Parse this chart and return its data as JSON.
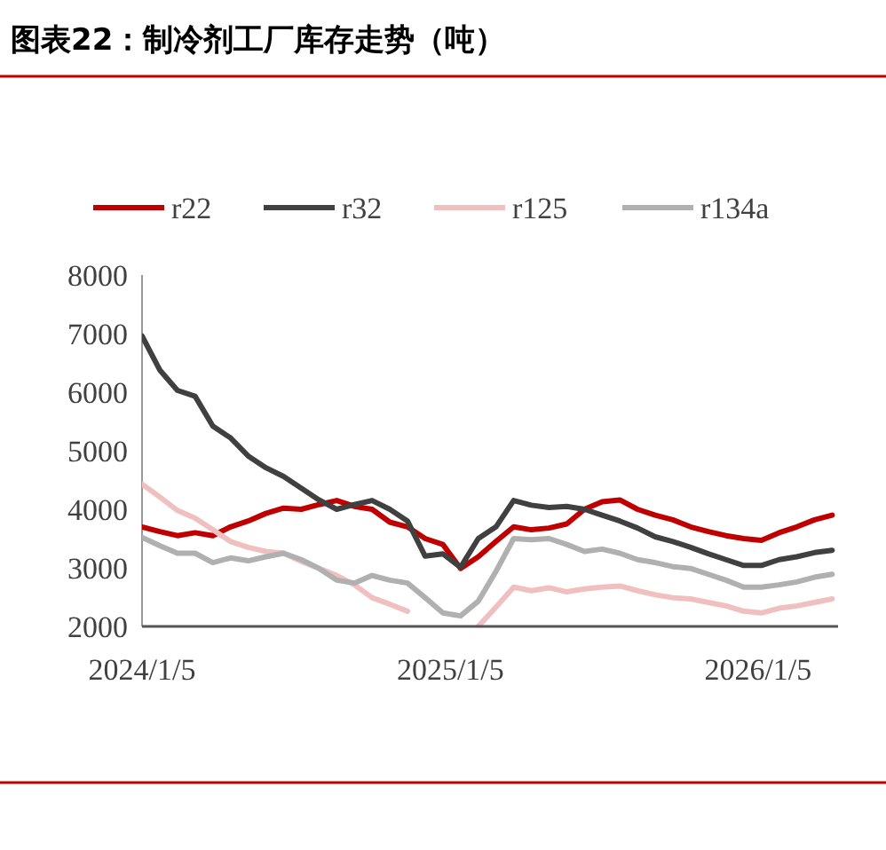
{
  "chart_data": {
    "type": "line",
    "title": "图表22：制冷剂工厂库存走势（吨）",
    "x": [
      "2024-01-05",
      "2024-01-26",
      "2024-02-16",
      "2024-03-08",
      "2024-03-29",
      "2024-04-19",
      "2024-05-10",
      "2024-05-31",
      "2024-06-21",
      "2024-07-12",
      "2024-08-02",
      "2024-08-23",
      "2024-09-13",
      "2024-10-04",
      "2024-10-25",
      "2024-11-15",
      "2024-12-06",
      "2024-12-27",
      "2025-01-17",
      "2025-02-07",
      "2025-02-28",
      "2025-03-21",
      "2025-04-11",
      "2025-05-02",
      "2025-05-23",
      "2025-06-13",
      "2025-07-04",
      "2025-07-25",
      "2025-08-15",
      "2025-09-05",
      "2025-09-26",
      "2025-10-17",
      "2025-11-07",
      "2025-11-28",
      "2025-12-19",
      "2026-01-09",
      "2026-01-30",
      "2026-02-20",
      "2026-03-13",
      "2026-04-03"
    ],
    "series": [
      {
        "name": "r22",
        "color": "#c00000",
        "values": [
          3700,
          3620,
          3550,
          3600,
          3550,
          3700,
          3800,
          3930,
          4020,
          4000,
          4080,
          4150,
          4050,
          4000,
          3780,
          3700,
          3500,
          3400,
          2990,
          3190,
          3450,
          3700,
          3650,
          3680,
          3750,
          4000,
          4130,
          4160,
          4000,
          3900,
          3820,
          3700,
          3620,
          3550,
          3500,
          3470,
          3600,
          3700,
          3820,
          3900
        ]
      },
      {
        "name": "r32",
        "color": "#404040",
        "values": [
          6960,
          6380,
          6030,
          5930,
          5420,
          5220,
          4910,
          4710,
          4560,
          4360,
          4160,
          4000,
          4080,
          4150,
          4000,
          3800,
          3200,
          3240,
          3010,
          3500,
          3700,
          4150,
          4070,
          4030,
          4050,
          4000,
          3900,
          3800,
          3680,
          3530,
          3450,
          3350,
          3240,
          3140,
          3040,
          3040,
          3140,
          3190,
          3260,
          3300
        ]
      },
      {
        "name": "r125",
        "color": "#f0c0c0",
        "values": [
          4430,
          4210,
          3980,
          3850,
          3650,
          3450,
          3350,
          3280,
          3250,
          3110,
          2990,
          2870,
          2710,
          2490,
          2380,
          2260,
          null,
          null,
          null,
          2000,
          2330,
          2670,
          2610,
          2660,
          2590,
          2640,
          2670,
          2690,
          2610,
          2540,
          2490,
          2470,
          2410,
          2350,
          2260,
          2230,
          2310,
          2350,
          2410,
          2470
        ]
      },
      {
        "name": "r134a",
        "color": "#b0b0b0",
        "values": [
          3520,
          3380,
          3250,
          3250,
          3090,
          3170,
          3120,
          3190,
          3250,
          3140,
          2990,
          2790,
          2740,
          2870,
          2790,
          2740,
          2490,
          2230,
          2180,
          2430,
          2940,
          3500,
          3480,
          3500,
          3400,
          3280,
          3320,
          3250,
          3140,
          3090,
          3020,
          2990,
          2890,
          2790,
          2670,
          2670,
          2710,
          2760,
          2840,
          2890
        ]
      }
    ],
    "xlim": [
      "2024-01-05",
      "2026-04-10"
    ],
    "xticks": [
      {
        "value": "2024-01-05",
        "label": "2024/1/5"
      },
      {
        "value": "2025-01-05",
        "label": "2025/1/5"
      },
      {
        "value": "2026-01-05",
        "label": "2026/1/5"
      }
    ],
    "ylim": [
      2000,
      8000
    ],
    "yticks": [
      2000,
      3000,
      4000,
      5000,
      6000,
      7000,
      8000
    ],
    "grid": false,
    "legend": "top",
    "marker": "none",
    "line_style": "solid"
  }
}
